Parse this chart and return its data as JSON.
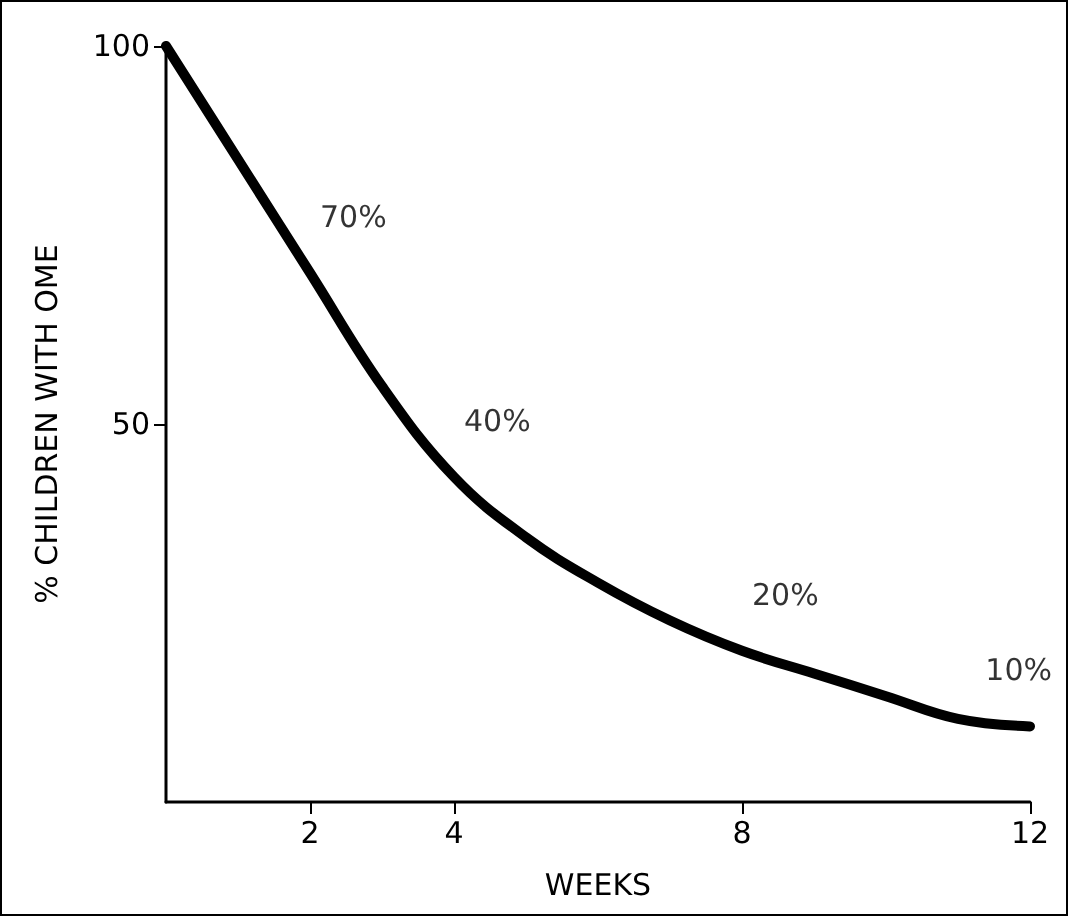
{
  "chart_data": {
    "type": "line",
    "xlabel": "WEEKS",
    "ylabel": "% CHILDREN WITH OME",
    "x": [
      0,
      1,
      2,
      3,
      4,
      5,
      6,
      7,
      8,
      9,
      10,
      11,
      12
    ],
    "series": [
      {
        "color": "#000000",
        "values": [
          100,
          85,
          70,
          55,
          43,
          35,
          29,
          24,
          20,
          17,
          14,
          11,
          10
        ]
      }
    ],
    "xlim": [
      0,
      12
    ],
    "xticks": [
      2,
      4,
      8,
      12
    ],
    "ylim": [
      0,
      100
    ],
    "yticks": [
      50,
      100
    ],
    "grid": false,
    "marker": "none",
    "line_style": "solid",
    "annotations": [
      {
        "text": "70%",
        "x": 2,
        "y": 70
      },
      {
        "text": "40%",
        "x": 4,
        "y": 43
      },
      {
        "text": "20%",
        "x": 8,
        "y": 20
      },
      {
        "text": "10%",
        "x": 12,
        "y": 10
      }
    ]
  }
}
